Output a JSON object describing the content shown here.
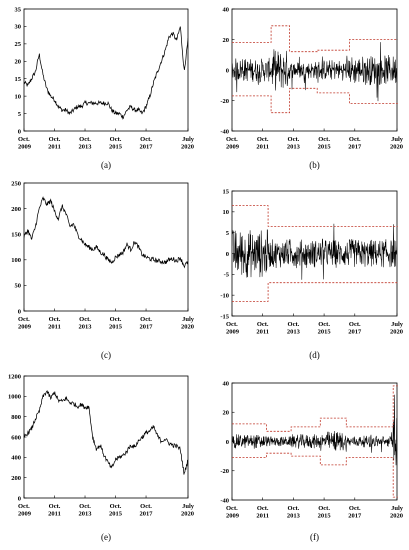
{
  "chart_data": [
    {
      "id": "a",
      "label": "(a)",
      "type": "line",
      "ylim": [
        0,
        35
      ],
      "yticks": [
        0,
        5,
        10,
        15,
        20,
        25,
        30,
        35
      ],
      "xticks": [
        {
          "top": "Oct.",
          "bottom": "2009"
        },
        {
          "top": "Oct.",
          "bottom": "2011"
        },
        {
          "top": "Oct.",
          "bottom": "2013"
        },
        {
          "top": "Oct.",
          "bottom": "2015"
        },
        {
          "top": "Oct.",
          "bottom": "2017"
        },
        {
          "top": "July",
          "bottom": "2020"
        }
      ],
      "series": [
        {
          "x": [
            2009.75,
            2010.0,
            2010.25,
            2010.5,
            2010.75,
            2011.0,
            2011.25,
            2011.5,
            2011.75,
            2012.0,
            2012.25,
            2012.5,
            2012.75,
            2013.0,
            2013.25,
            2013.5,
            2013.75,
            2014.0,
            2014.25,
            2014.5,
            2014.75,
            2015.0,
            2015.25,
            2015.5,
            2015.75,
            2016.0,
            2016.25,
            2016.5,
            2016.75,
            2017.0,
            2017.25,
            2017.5,
            2017.75,
            2018.0,
            2018.25,
            2018.5,
            2018.75,
            2019.0,
            2019.25,
            2019.5,
            2019.75,
            2020.0,
            2020.25,
            2020.5
          ],
          "values": [
            14,
            13,
            15,
            17,
            22,
            16,
            12,
            10,
            9,
            7,
            6,
            6,
            5,
            6,
            7,
            7,
            8,
            8,
            8,
            8,
            8,
            8,
            8,
            6,
            5,
            5,
            4,
            6,
            7,
            6,
            6,
            5,
            7,
            10,
            14,
            17,
            20,
            23,
            27,
            28,
            26,
            30,
            17,
            26
          ]
        }
      ]
    },
    {
      "id": "b",
      "label": "(b)",
      "type": "line",
      "ylim": [
        -40,
        40
      ],
      "yticks": [
        -40,
        -20,
        0,
        20,
        40
      ],
      "xticks": [
        {
          "top": "Oct.",
          "bottom": "2009"
        },
        {
          "top": "Oct.",
          "bottom": "2011"
        },
        {
          "top": "Oct.",
          "bottom": "2013"
        },
        {
          "top": "Oct.",
          "bottom": "2015"
        },
        {
          "top": "Oct.",
          "bottom": "2017"
        },
        {
          "top": "July",
          "bottom": "2020"
        }
      ],
      "noise_bands": [
        {
          "x": [
            2009.75,
            2012.3
          ],
          "amp": 8
        },
        {
          "x": [
            2012.3,
            2013.5
          ],
          "amp": 14
        },
        {
          "x": [
            2013.5,
            2015.3
          ],
          "amp": 6
        },
        {
          "x": [
            2015.3,
            2017.4
          ],
          "amp": 7
        },
        {
          "x": [
            2017.4,
            2020.6
          ],
          "amp": 10
        }
      ],
      "bounds": [
        {
          "x": [
            2009.75,
            2012.3
          ],
          "upper": 18,
          "lower": -17
        },
        {
          "x": [
            2012.3,
            2013.5
          ],
          "upper": 29,
          "lower": -28
        },
        {
          "x": [
            2013.5,
            2015.3
          ],
          "upper": 12,
          "lower": -12
        },
        {
          "x": [
            2015.3,
            2017.4
          ],
          "upper": 13,
          "lower": -15
        },
        {
          "x": [
            2017.4,
            2020.6
          ],
          "upper": 20,
          "lower": -22
        }
      ]
    },
    {
      "id": "c",
      "label": "(c)",
      "type": "line",
      "ylim": [
        0,
        250
      ],
      "yticks": [
        0,
        50,
        100,
        150,
        200,
        250
      ],
      "xticks": [
        {
          "top": "Oct.",
          "bottom": "2009"
        },
        {
          "top": "Oct.",
          "bottom": "2011"
        },
        {
          "top": "Oct.",
          "bottom": "2013"
        },
        {
          "top": "Oct.",
          "bottom": "2015"
        },
        {
          "top": "Oct.",
          "bottom": "2017"
        },
        {
          "top": "July",
          "bottom": "2020"
        }
      ],
      "series": [
        {
          "x": [
            2009.75,
            2010.0,
            2010.25,
            2010.5,
            2010.75,
            2011.0,
            2011.25,
            2011.5,
            2011.75,
            2012.0,
            2012.25,
            2012.5,
            2012.75,
            2013.0,
            2013.25,
            2013.5,
            2013.75,
            2014.0,
            2014.25,
            2014.5,
            2014.75,
            2015.0,
            2015.25,
            2015.5,
            2015.75,
            2016.0,
            2016.25,
            2016.5,
            2016.75,
            2017.0,
            2017.25,
            2017.5,
            2017.75,
            2018.0,
            2018.25,
            2018.5,
            2018.75,
            2019.0,
            2019.25,
            2019.5,
            2019.75,
            2020.0,
            2020.25,
            2020.5
          ],
          "values": [
            145,
            158,
            140,
            165,
            200,
            220,
            208,
            215,
            195,
            180,
            205,
            190,
            165,
            170,
            150,
            140,
            130,
            125,
            120,
            125,
            115,
            110,
            100,
            95,
            105,
            110,
            115,
            130,
            120,
            135,
            125,
            110,
            105,
            102,
            100,
            98,
            97,
            95,
            100,
            102,
            98,
            104,
            88,
            95
          ]
        }
      ]
    },
    {
      "id": "d",
      "label": "(d)",
      "type": "line",
      "ylim": [
        -15,
        15
      ],
      "yticks": [
        -15,
        -10,
        -5,
        0,
        5,
        10,
        15
      ],
      "xticks": [
        {
          "top": "Oct.",
          "bottom": "2009"
        },
        {
          "top": "Oct.",
          "bottom": "2011"
        },
        {
          "top": "Oct.",
          "bottom": "2013"
        },
        {
          "top": "Oct.",
          "bottom": "2015"
        },
        {
          "top": "Oct.",
          "bottom": "2017"
        },
        {
          "top": "July",
          "bottom": "2020"
        }
      ],
      "noise_bands": [
        {
          "x": [
            2009.75,
            2012.1
          ],
          "amp": 6
        },
        {
          "x": [
            2012.1,
            2020.6
          ],
          "amp": 3.5
        }
      ],
      "bounds": [
        {
          "x": [
            2009.75,
            2012.1
          ],
          "upper": 11.5,
          "lower": -11.5
        },
        {
          "x": [
            2012.1,
            2020.6
          ],
          "upper": 6.5,
          "lower": -7
        }
      ]
    },
    {
      "id": "e",
      "label": "(e)",
      "type": "line",
      "ylim": [
        0,
        1200
      ],
      "yticks": [
        0,
        200,
        400,
        600,
        800,
        1000,
        1200
      ],
      "xticks": [
        {
          "top": "Oct.",
          "bottom": "2009"
        },
        {
          "top": "Oct.",
          "bottom": "2011"
        },
        {
          "top": "Oct.",
          "bottom": "2013"
        },
        {
          "top": "Oct.",
          "bottom": "2015"
        },
        {
          "top": "Oct.",
          "bottom": "2017"
        },
        {
          "top": "July",
          "bottom": "2020"
        }
      ],
      "series": [
        {
          "x": [
            2009.75,
            2010.0,
            2010.25,
            2010.5,
            2010.75,
            2011.0,
            2011.25,
            2011.5,
            2011.75,
            2012.0,
            2012.25,
            2012.5,
            2012.75,
            2013.0,
            2013.25,
            2013.5,
            2013.75,
            2014.0,
            2014.25,
            2014.5,
            2014.75,
            2015.0,
            2015.25,
            2015.5,
            2015.75,
            2016.0,
            2016.25,
            2016.5,
            2016.75,
            2017.0,
            2017.25,
            2017.5,
            2017.75,
            2018.0,
            2018.25,
            2018.5,
            2018.75,
            2019.0,
            2019.25,
            2019.5,
            2019.75,
            2020.0,
            2020.25,
            2020.5
          ],
          "values": [
            600,
            640,
            680,
            780,
            850,
            1000,
            1050,
            980,
            1040,
            960,
            950,
            980,
            940,
            930,
            900,
            920,
            890,
            900,
            600,
            480,
            520,
            420,
            350,
            290,
            380,
            400,
            420,
            460,
            520,
            500,
            560,
            600,
            640,
            660,
            700,
            610,
            560,
            580,
            540,
            520,
            510,
            480,
            230,
            380
          ]
        }
      ]
    },
    {
      "id": "f",
      "label": "(f)",
      "type": "line",
      "ylim": [
        -40,
        40
      ],
      "yticks": [
        -40,
        -20,
        0,
        20,
        40
      ],
      "xticks": [
        {
          "top": "Oct.",
          "bottom": "2009"
        },
        {
          "top": "Oct.",
          "bottom": "2011"
        },
        {
          "top": "Oct.",
          "bottom": "2013"
        },
        {
          "top": "Oct.",
          "bottom": "2015"
        },
        {
          "top": "Oct.",
          "bottom": "2017"
        },
        {
          "top": "July",
          "bottom": "2020"
        }
      ],
      "noise_bands": [
        {
          "x": [
            2009.75,
            2012.0
          ],
          "amp": 5
        },
        {
          "x": [
            2012.0,
            2013.6
          ],
          "amp": 3.5
        },
        {
          "x": [
            2013.6,
            2015.5
          ],
          "amp": 5
        },
        {
          "x": [
            2015.5,
            2017.2
          ],
          "amp": 7
        },
        {
          "x": [
            2017.2,
            2020.25
          ],
          "amp": 4
        },
        {
          "x": [
            2020.25,
            2020.6
          ],
          "amp": 18
        }
      ],
      "bounds": [
        {
          "x": [
            2009.75,
            2012.0
          ],
          "upper": 12,
          "lower": -11
        },
        {
          "x": [
            2012.0,
            2013.6
          ],
          "upper": 7,
          "lower": -8
        },
        {
          "x": [
            2013.6,
            2015.5
          ],
          "upper": 10,
          "lower": -10
        },
        {
          "x": [
            2015.5,
            2017.2
          ],
          "upper": 16,
          "lower": -16
        },
        {
          "x": [
            2017.2,
            2020.25
          ],
          "upper": 10,
          "lower": -11
        },
        {
          "x": [
            2020.25,
            2020.6
          ],
          "upper": 38,
          "lower": -38
        }
      ]
    }
  ]
}
